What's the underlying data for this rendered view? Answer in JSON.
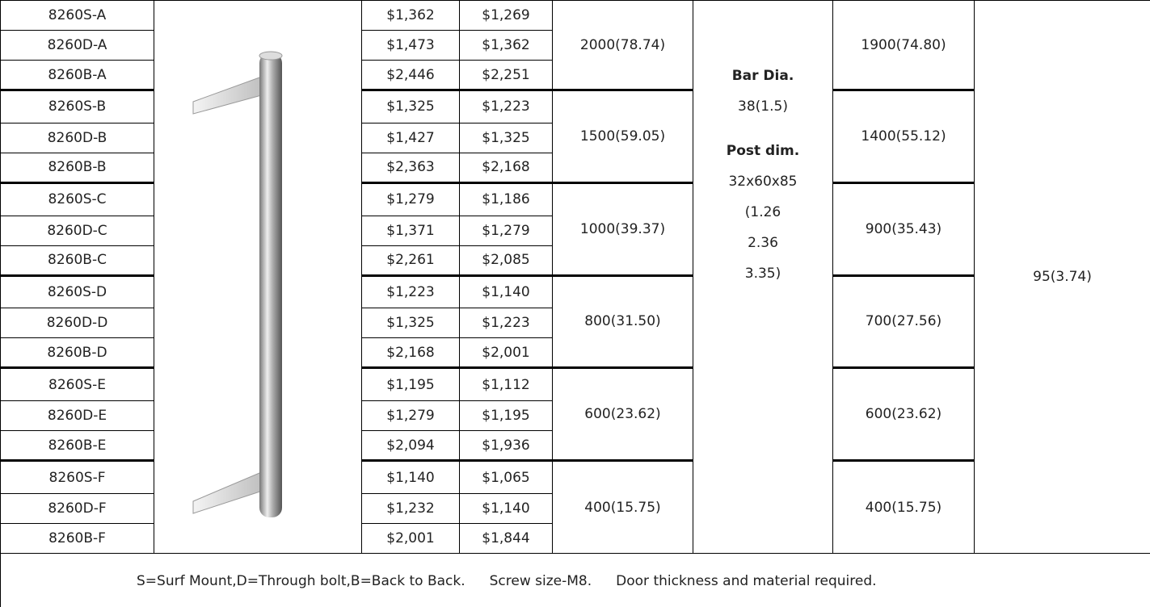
{
  "table": {
    "rows": [
      [
        "8260S-A",
        "$1,362",
        "$1,269"
      ],
      [
        "8260D-A",
        "$1,473",
        "$1,362"
      ],
      [
        "8260B-A",
        "$2,446",
        "$2,251"
      ],
      [
        "8260S-B",
        "$1,325",
        "$1,223"
      ],
      [
        "8260D-B",
        "$1,427",
        "$1,325"
      ],
      [
        "8260B-B",
        "$2,363",
        "$2,168"
      ],
      [
        "8260S-C",
        "$1,279",
        "$1,186"
      ],
      [
        "8260D-C",
        "$1,371",
        "$1,279"
      ],
      [
        "8260B-C",
        "$2,261",
        "$2,085"
      ],
      [
        "8260S-D",
        "$1,223",
        "$1,140"
      ],
      [
        "8260D-D",
        "$1,325",
        "$1,223"
      ],
      [
        "8260B-D",
        "$2,168",
        "$2,001"
      ],
      [
        "8260S-E",
        "$1,195",
        "$1,112"
      ],
      [
        "8260D-E",
        "$1,279",
        "$1,195"
      ],
      [
        "8260B-E",
        "$2,094",
        "$1,936"
      ],
      [
        "8260S-F",
        "$1,140",
        "$1,065"
      ],
      [
        "8260D-F",
        "$1,232",
        "$1,140"
      ],
      [
        "8260B-F",
        "$2,001",
        "$1,844"
      ]
    ],
    "groups": [
      [
        "2000(78.74)",
        "1900(74.80)"
      ],
      [
        "1500(59.05)",
        "1400(55.12)"
      ],
      [
        "1000(39.37)",
        "900(35.43)"
      ],
      [
        "800(31.50)",
        "700(27.56)"
      ],
      [
        "600(23.62)",
        "600(23.62)"
      ],
      [
        "400(15.75)",
        "400(15.75)"
      ]
    ],
    "info": [
      {
        "label": "Bar Dia.",
        "lines": [
          "38(1.5)"
        ]
      },
      {
        "label": "Post dim.",
        "lines": [
          "32x60x85",
          "(1.26",
          "2.36",
          "3.35)"
        ]
      }
    ],
    "projection": "95(3.74)",
    "footer": [
      "S=Surf Mount,D=Through bolt,B=Back to Back.",
      "Screw size-M8.",
      "Door thickness and material required."
    ]
  }
}
